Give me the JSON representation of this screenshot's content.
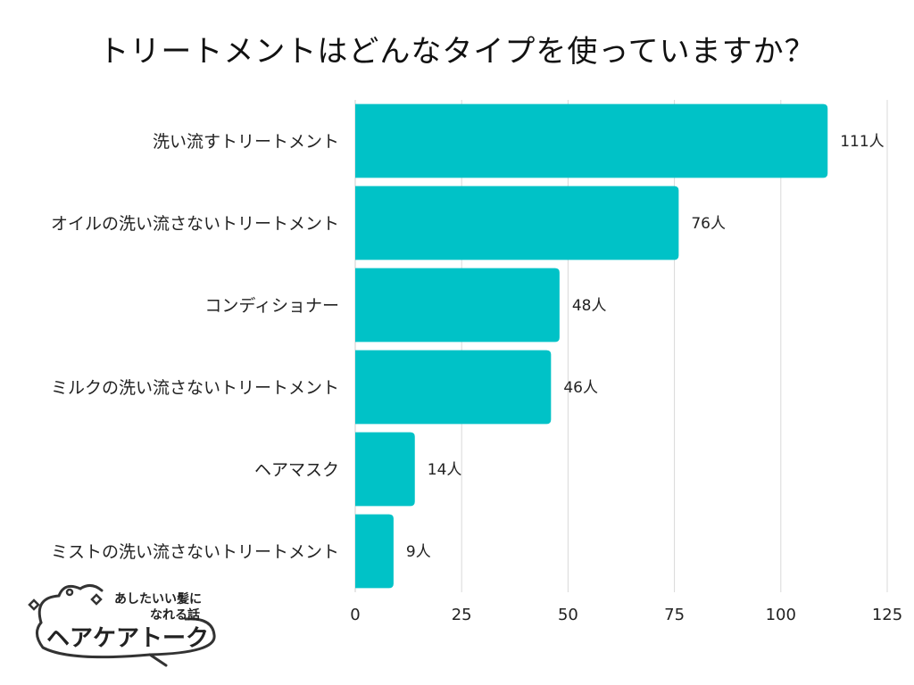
{
  "chart_data": {
    "type": "bar",
    "orientation": "horizontal",
    "title": "トリートメントはどんなタイプを使っていますか？",
    "categories": [
      "洗い流すトリートメント",
      "オイルの洗い流さないトリートメント",
      "コンディショナー",
      "ミルクの洗い流さないトリートメント",
      "ヘアマスク",
      "ミストの洗い流さないトリートメント"
    ],
    "values": [
      111,
      76,
      48,
      46,
      14,
      9
    ],
    "value_labels": [
      "111人",
      "76人",
      "48人",
      "46人",
      "14人",
      "9人"
    ],
    "xlim": [
      0,
      125
    ],
    "xticks": [
      0,
      25,
      50,
      75,
      100,
      125
    ],
    "grid": true,
    "bar_color": "#00C2C7"
  },
  "logo": {
    "tagline_line1": "あしたいい髪に",
    "tagline_line2": "なれる話",
    "name": "ヘアケアトーク"
  }
}
